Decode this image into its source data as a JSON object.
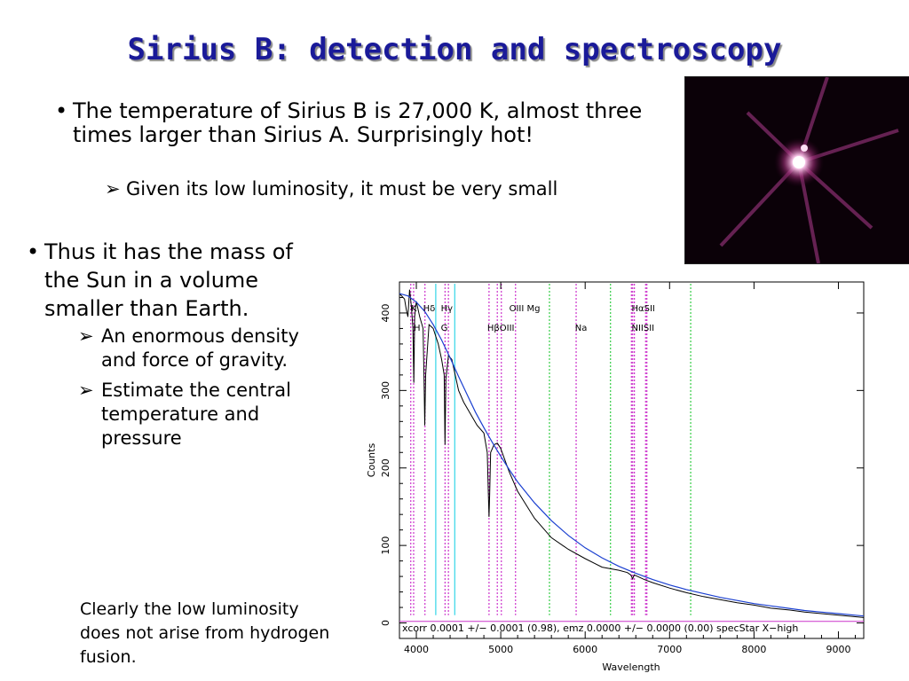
{
  "slide": {
    "title": "Sirius B: detection and spectroscopy",
    "bullet1": "The temperature of Sirius B is 27,000 K, almost three times larger than Sirius A.  Surprisingly hot!",
    "bullet1_sub": "Given its low luminosity, it must be very small",
    "bullet2": "Thus it has the mass of the Sun in a volume smaller than Earth.",
    "bullet2_subs": [
      "An enormous density and force of gravity.",
      "Estimate the central temperature and pressure"
    ],
    "note": "Clearly the low luminosity does not arise from hydrogen fusion.",
    "bullet_glyph": "•",
    "arrow_glyph": "➢",
    "photo_icon": "star-image-icon"
  },
  "chart_data": {
    "type": "line",
    "xlabel": "Wavelength",
    "ylabel": "Counts",
    "xlim": [
      3800,
      9300
    ],
    "ylim": [
      -20,
      440
    ],
    "x_ticks": [
      4000,
      5000,
      6000,
      7000,
      8000,
      9000
    ],
    "y_ticks": [
      0,
      100,
      200,
      300,
      400
    ],
    "series": [
      {
        "role": "spectrum",
        "color": "#000000",
        "x": [
          3800,
          3860,
          3880,
          3900,
          3920,
          3940,
          3960,
          3970,
          3980,
          4000,
          4040,
          4080,
          4090,
          4100,
          4110,
          4150,
          4200,
          4260,
          4300,
          4330,
          4340,
          4350,
          4380,
          4420,
          4460,
          4500,
          4560,
          4640,
          4720,
          4800,
          4840,
          4855,
          4861,
          4868,
          4880,
          4920,
          4960,
          5000,
          5100,
          5200,
          5400,
          5600,
          5800,
          6000,
          6200,
          6400,
          6500,
          6540,
          6563,
          6580,
          6620,
          6700,
          6800,
          7000,
          7200,
          7400,
          7600,
          7800,
          8000,
          8200,
          8400,
          8600,
          8800,
          9000,
          9200,
          9300
        ],
        "y": [
          425,
          418,
          405,
          395,
          430,
          410,
          380,
          310,
          395,
          415,
          395,
          380,
          320,
          255,
          320,
          385,
          380,
          360,
          340,
          320,
          230,
          315,
          345,
          340,
          320,
          300,
          285,
          270,
          255,
          245,
          220,
          160,
          137,
          165,
          220,
          230,
          232,
          225,
          195,
          170,
          135,
          110,
          95,
          83,
          72,
          68,
          65,
          62,
          57,
          62,
          60,
          56,
          52,
          45,
          39,
          34,
          30,
          26,
          23,
          19,
          17,
          14,
          12,
          10,
          8,
          7
        ]
      },
      {
        "role": "model",
        "color": "#1a3fd0",
        "x": [
          3800,
          3900,
          4000,
          4100,
          4200,
          4300,
          4400,
          4500,
          4600,
          4700,
          4800,
          4900,
          5000,
          5100,
          5200,
          5400,
          5600,
          5800,
          6000,
          6200,
          6400,
          6600,
          6800,
          7000,
          7200,
          7400,
          7600,
          7800,
          8000,
          8200,
          8400,
          8600,
          8800,
          9000,
          9200,
          9300
        ],
        "y": [
          425,
          422,
          414,
          402,
          385,
          365,
          342,
          318,
          295,
          272,
          252,
          233,
          215,
          198,
          182,
          155,
          132,
          113,
          97,
          84,
          73,
          64,
          56,
          49,
          43,
          38,
          33,
          29,
          25,
          22,
          19,
          16,
          14,
          12,
          10,
          9
        ]
      },
      {
        "role": "baseline",
        "color": "#cc33cc",
        "x": [
          3800,
          9300
        ],
        "y": [
          2,
          2
        ]
      }
    ],
    "line_markers": [
      {
        "x": 3934,
        "color": "#cc33cc"
      },
      {
        "x": 3968,
        "color": "#cc33cc"
      },
      {
        "x": 4102,
        "color": "#cc33cc"
      },
      {
        "x": 4230,
        "color": "#33d6e8"
      },
      {
        "x": 4340,
        "color": "#cc33cc"
      },
      {
        "x": 4380,
        "color": "#cc33cc"
      },
      {
        "x": 4455,
        "color": "#33d6e8"
      },
      {
        "x": 4861,
        "color": "#cc33cc"
      },
      {
        "x": 4959,
        "color": "#cc33cc"
      },
      {
        "x": 5007,
        "color": "#cc33cc"
      },
      {
        "x": 5175,
        "color": "#cc33cc"
      },
      {
        "x": 5577,
        "color": "#33cc44"
      },
      {
        "x": 5893,
        "color": "#cc33cc"
      },
      {
        "x": 6300,
        "color": "#33cc44"
      },
      {
        "x": 6548,
        "color": "#cc33cc"
      },
      {
        "x": 6563,
        "color": "#cc33cc"
      },
      {
        "x": 6583,
        "color": "#cc33cc"
      },
      {
        "x": 6716,
        "color": "#cc33cc"
      },
      {
        "x": 6731,
        "color": "#cc33cc"
      },
      {
        "x": 7250,
        "color": "#33cc44"
      }
    ],
    "line_labels": [
      {
        "text": "K",
        "x": 3935,
        "y": 402
      },
      {
        "text": "Hδ",
        "x": 4080,
        "y": 402
      },
      {
        "text": "Hγ",
        "x": 4290,
        "y": 402
      },
      {
        "text": "OIII Mg",
        "x": 5100,
        "y": 402
      },
      {
        "text": "HαSII",
        "x": 6550,
        "y": 402
      },
      {
        "text": "H",
        "x": 3968,
        "y": 377
      },
      {
        "text": "G",
        "x": 4290,
        "y": 377
      },
      {
        "text": "HβOIII",
        "x": 4840,
        "y": 377
      },
      {
        "text": "Na",
        "x": 5880,
        "y": 377
      },
      {
        "text": "NIISII",
        "x": 6550,
        "y": 377
      }
    ],
    "annotation": "xcorr   0.0001 +/− 0.0001 (0.98), emz   0.0000 +/− 0.0000 (0.00) specStar X−high"
  }
}
